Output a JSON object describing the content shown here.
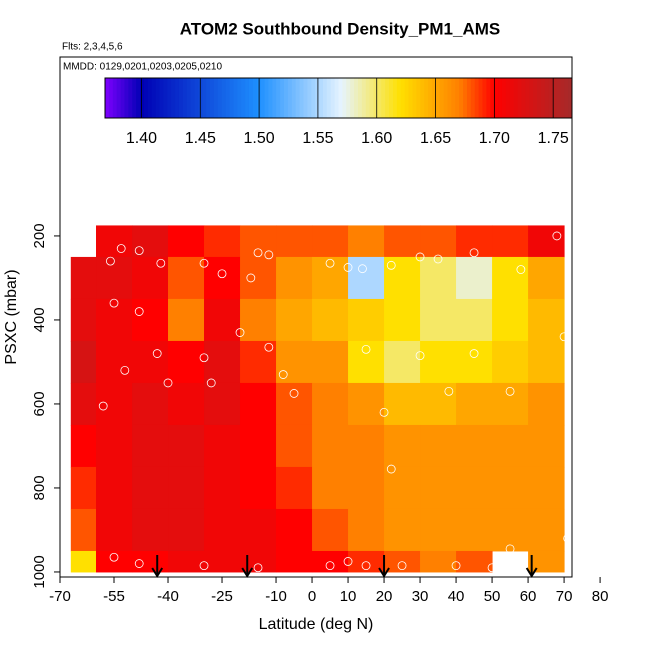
{
  "chart_data": {
    "type": "heatmap",
    "title": "ATOM2 Southbound Density_PM1_AMS",
    "subtitle": "Flts: 2,3,4,5,6",
    "annotation": "MMDD: 0129,0201,0203,0205,0210",
    "x_label": "Latitude (deg N)",
    "y_label": "PSXC (mbar)",
    "xlim": [
      -70,
      72.2
    ],
    "ylim": [
      1012,
      -226
    ],
    "xticks": [
      -70,
      -55,
      -40,
      -25,
      -10,
      0,
      10,
      20,
      30,
      40,
      50,
      60,
      70,
      80
    ],
    "yticks": [
      200,
      400,
      600,
      800,
      1000
    ],
    "x_edges": [
      -67,
      -60,
      -50,
      -40,
      -30,
      -20,
      -10,
      0,
      10,
      20,
      30,
      40,
      50,
      60,
      70
    ],
    "y_edges": [
      175,
      250,
      350,
      450,
      550,
      650,
      750,
      850,
      950,
      1000
    ],
    "z": [
      [
        null,
        1.71,
        1.72,
        1.7,
        1.69,
        1.68,
        1.68,
        1.68,
        1.67,
        1.68,
        1.68,
        1.69,
        1.69,
        1.71
      ],
      [
        1.72,
        1.72,
        1.71,
        1.68,
        1.7,
        1.68,
        1.66,
        1.65,
        1.55,
        1.62,
        1.6,
        1.58,
        1.62,
        1.65
      ],
      [
        1.72,
        1.71,
        1.7,
        1.67,
        1.71,
        1.67,
        1.65,
        1.64,
        1.63,
        1.62,
        1.6,
        1.6,
        1.62,
        1.64
      ],
      [
        1.73,
        1.71,
        1.71,
        1.7,
        1.72,
        1.69,
        1.66,
        1.66,
        1.62,
        1.6,
        1.62,
        1.62,
        1.63,
        1.64
      ],
      [
        1.72,
        1.71,
        1.72,
        1.71,
        1.72,
        1.7,
        1.68,
        1.67,
        1.66,
        1.64,
        1.64,
        1.65,
        1.65,
        1.66
      ],
      [
        1.7,
        1.71,
        1.72,
        1.72,
        1.71,
        1.7,
        1.68,
        1.67,
        1.67,
        1.66,
        1.66,
        1.66,
        1.66,
        1.66
      ],
      [
        1.69,
        1.71,
        1.72,
        1.72,
        1.71,
        1.7,
        1.69,
        1.67,
        1.67,
        1.66,
        1.66,
        1.66,
        1.66,
        1.66
      ],
      [
        1.68,
        1.71,
        1.72,
        1.72,
        1.71,
        1.71,
        1.7,
        1.68,
        1.67,
        1.66,
        1.66,
        1.66,
        1.66,
        1.66
      ],
      [
        1.62,
        1.7,
        1.7,
        1.71,
        1.71,
        1.71,
        1.7,
        1.7,
        1.69,
        1.68,
        1.67,
        1.68,
        null,
        1.66
      ]
    ],
    "clim": [
      1.369,
      1.766
    ],
    "colorbar_ticks": [
      {
        "value": 1.4,
        "label": "1.40"
      },
      {
        "value": 1.45,
        "label": "1.45"
      },
      {
        "value": 1.5,
        "label": "1.50"
      },
      {
        "value": 1.55,
        "label": "1.55"
      },
      {
        "value": 1.6,
        "label": "1.60"
      },
      {
        "value": 1.65,
        "label": "1.65"
      },
      {
        "value": 1.7,
        "label": "1.70"
      },
      {
        "value": 1.75,
        "label": "1.75"
      }
    ],
    "colormap": {
      "stops": [
        1.369,
        1.4,
        1.5,
        1.57,
        1.62,
        1.67,
        1.7,
        1.766
      ],
      "colors": [
        "#7f00ff",
        "#0000b4",
        "#1e90ff",
        "#e6f4ff",
        "#ffe000",
        "#ff8000",
        "#ff0000",
        "#a52a2a"
      ]
    },
    "points": {
      "x": [
        -56,
        -53,
        -48,
        -42,
        -30,
        -25,
        -17,
        -12,
        -15,
        5,
        10,
        14,
        22,
        30,
        35,
        45,
        58,
        68,
        -55,
        -48,
        -20,
        -43,
        -30,
        -12,
        15,
        30,
        45,
        -52,
        -40,
        -28,
        -5,
        -8,
        20,
        38,
        55,
        70,
        71,
        55,
        -58,
        -55,
        -48,
        -30,
        -15,
        5,
        15,
        25,
        40,
        50,
        10,
        22
      ],
      "y": [
        260,
        230,
        235,
        265,
        265,
        290,
        300,
        245,
        240,
        265,
        275,
        278,
        270,
        250,
        255,
        240,
        280,
        200,
        360,
        380,
        430,
        480,
        490,
        465,
        470,
        485,
        480,
        520,
        550,
        550,
        575,
        530,
        620,
        570,
        570,
        440,
        920,
        945,
        605,
        965,
        980,
        985,
        990,
        985,
        985,
        985,
        985,
        990,
        975,
        755
      ]
    },
    "arrows": [
      -43,
      -18,
      20,
      61
    ]
  }
}
